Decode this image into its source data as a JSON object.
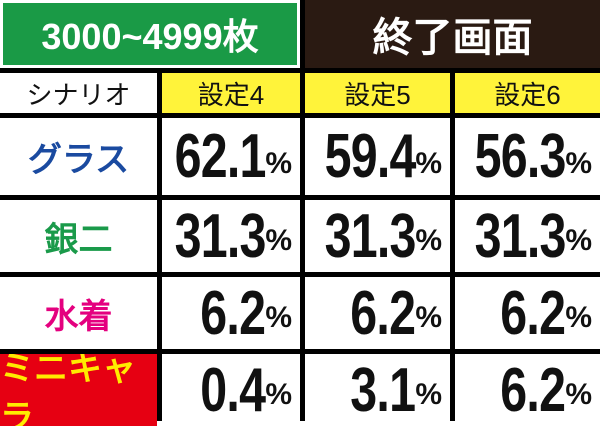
{
  "header": {
    "title": "3000~4999枚",
    "subtitle": "終了画面"
  },
  "table": {
    "columns": [
      "シナリオ",
      "設定4",
      "設定5",
      "設定6"
    ],
    "rows": [
      [
        "グラス",
        "62.1%",
        "59.4%",
        "56.3%"
      ],
      [
        "銀二",
        "31.3%",
        "31.3%",
        "31.3%"
      ],
      [
        "水着",
        "6.2%",
        "6.2%",
        "6.2%"
      ],
      [
        "ミニキャラ",
        "0.4%",
        "3.1%",
        "6.2%"
      ]
    ]
  }
}
